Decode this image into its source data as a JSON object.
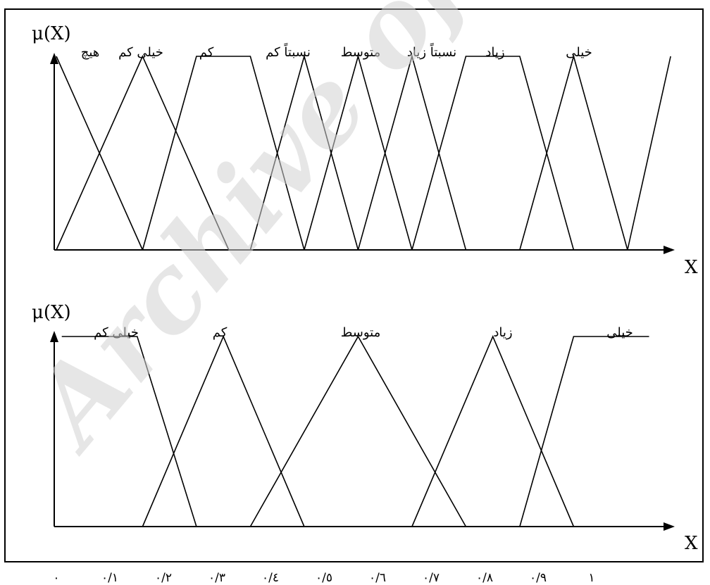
{
  "watermark": "Archive of",
  "x_ticks": [
    "۰",
    "۰/۱",
    "۰/۲",
    "۰/۳",
    "۰/٤",
    "۰/٥",
    "۰/٦",
    "۰/۷",
    "۰/۸",
    "۰/۹",
    "۱"
  ],
  "charts": [
    {
      "ylabel": "μ(X)",
      "xlabel": "X",
      "sets": [
        {
          "label": "هیچ",
          "points": [
            [
              0,
              1
            ],
            [
              0.16,
              0
            ]
          ]
        },
        {
          "label": "خیلی کم",
          "points": [
            [
              0,
              0
            ],
            [
              0.16,
              1
            ],
            [
              0.32,
              0
            ]
          ]
        },
        {
          "label": "کم",
          "points": [
            [
              0.16,
              0
            ],
            [
              0.26,
              1
            ],
            [
              0.36,
              1
            ],
            [
              0.46,
              0
            ]
          ]
        },
        {
          "label": "نسبتاً کم",
          "points": [
            [
              0.36,
              0
            ],
            [
              0.46,
              1
            ],
            [
              0.56,
              0
            ]
          ]
        },
        {
          "label": "متوسط",
          "points": [
            [
              0.46,
              0
            ],
            [
              0.56,
              1
            ],
            [
              0.66,
              0
            ]
          ]
        },
        {
          "label": "نسبتاً زیاد",
          "points": [
            [
              0.56,
              0
            ],
            [
              0.66,
              1
            ],
            [
              0.76,
              0
            ]
          ]
        },
        {
          "label": "زیاد",
          "points": [
            [
              0.66,
              0
            ],
            [
              0.76,
              1
            ],
            [
              0.86,
              1
            ],
            [
              0.96,
              0
            ]
          ]
        },
        {
          "label": "خیلی",
          "points": [
            [
              0.86,
              0
            ],
            [
              0.96,
              1
            ],
            [
              1.06,
              0
            ]
          ]
        },
        {
          "label": "",
          "points": [
            [
              1.06,
              0
            ],
            [
              1.14,
              1
            ]
          ]
        }
      ]
    },
    {
      "ylabel": "μ(X)",
      "xlabel": "X",
      "sets": [
        {
          "label": "خیلی کم",
          "points": [
            [
              0.01,
              1
            ],
            [
              0.15,
              1
            ],
            [
              0.26,
              0
            ]
          ]
        },
        {
          "label": "کم",
          "points": [
            [
              0.16,
              0
            ],
            [
              0.31,
              1
            ],
            [
              0.46,
              0
            ]
          ]
        },
        {
          "label": "متوسط",
          "points": [
            [
              0.36,
              0
            ],
            [
              0.56,
              1
            ],
            [
              0.76,
              0
            ]
          ]
        },
        {
          "label": "زیاد",
          "points": [
            [
              0.66,
              0
            ],
            [
              0.81,
              1
            ],
            [
              0.96,
              0
            ]
          ]
        },
        {
          "label": "خیلی",
          "points": [
            [
              0.86,
              0
            ],
            [
              0.96,
              1
            ],
            [
              1.1,
              1
            ]
          ]
        }
      ]
    }
  ]
}
